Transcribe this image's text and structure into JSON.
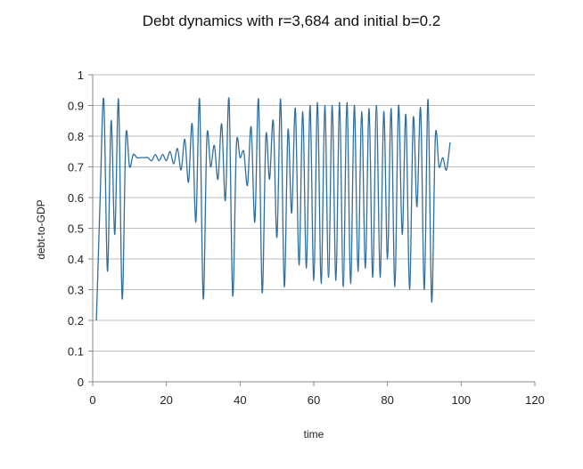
{
  "chart_data": {
    "type": "line",
    "title": "Debt dynamics with r=3,684 and initial b=0.2",
    "xlabel": "time",
    "ylabel": "debt-to-GDP",
    "xlim": [
      0,
      120
    ],
    "ylim": [
      0,
      1
    ],
    "x_ticks": [
      "0",
      "20",
      "40",
      "60",
      "80",
      "100",
      "120"
    ],
    "y_ticks": [
      "0",
      "0.1",
      "0.2",
      "0.3",
      "0.4",
      "0.5",
      "0.6",
      "0.7",
      "0.8",
      "0.9",
      "1"
    ],
    "grid": "horizontal",
    "legend": "none",
    "series_color": "#2f6f9f",
    "series": [
      {
        "x": [
          1,
          2,
          3,
          4,
          5,
          6,
          7,
          8,
          9,
          10,
          11,
          12,
          13,
          14,
          15,
          16,
          17,
          18,
          19,
          20,
          21,
          22,
          23,
          24,
          25,
          26,
          27,
          28,
          29,
          30,
          31,
          32,
          33,
          34,
          35,
          36,
          37,
          38,
          39,
          40,
          41,
          42,
          43,
          44,
          45,
          46,
          47,
          48,
          49,
          50,
          51,
          52,
          53,
          54,
          55,
          56,
          57,
          58,
          59,
          60,
          61,
          62,
          63,
          64,
          65,
          66,
          67,
          68,
          69,
          70,
          71,
          72,
          73,
          74,
          75,
          76,
          77,
          78,
          79,
          80,
          81,
          82,
          83,
          84,
          85,
          86,
          87,
          88,
          89,
          90,
          91,
          92,
          93,
          94,
          95,
          96,
          97
        ],
        "values": [
          0.2,
          0.59,
          0.92,
          0.36,
          0.85,
          0.48,
          0.92,
          0.27,
          0.8,
          0.7,
          0.74,
          0.73,
          0.73,
          0.73,
          0.73,
          0.72,
          0.74,
          0.72,
          0.74,
          0.72,
          0.75,
          0.71,
          0.76,
          0.69,
          0.79,
          0.65,
          0.84,
          0.52,
          0.92,
          0.27,
          0.8,
          0.7,
          0.77,
          0.66,
          0.84,
          0.59,
          0.92,
          0.28,
          0.77,
          0.73,
          0.75,
          0.64,
          0.83,
          0.52,
          0.92,
          0.29,
          0.8,
          0.66,
          0.85,
          0.47,
          0.92,
          0.31,
          0.82,
          0.55,
          0.89,
          0.38,
          0.88,
          0.37,
          0.9,
          0.33,
          0.91,
          0.32,
          0.9,
          0.34,
          0.9,
          0.33,
          0.91,
          0.31,
          0.91,
          0.32,
          0.9,
          0.36,
          0.88,
          0.37,
          0.89,
          0.34,
          0.9,
          0.34,
          0.88,
          0.4,
          0.89,
          0.31,
          0.9,
          0.48,
          0.87,
          0.3,
          0.86,
          0.57,
          0.89,
          0.3,
          0.92,
          0.26,
          0.8,
          0.7,
          0.73,
          0.69,
          0.78
        ]
      }
    ]
  }
}
